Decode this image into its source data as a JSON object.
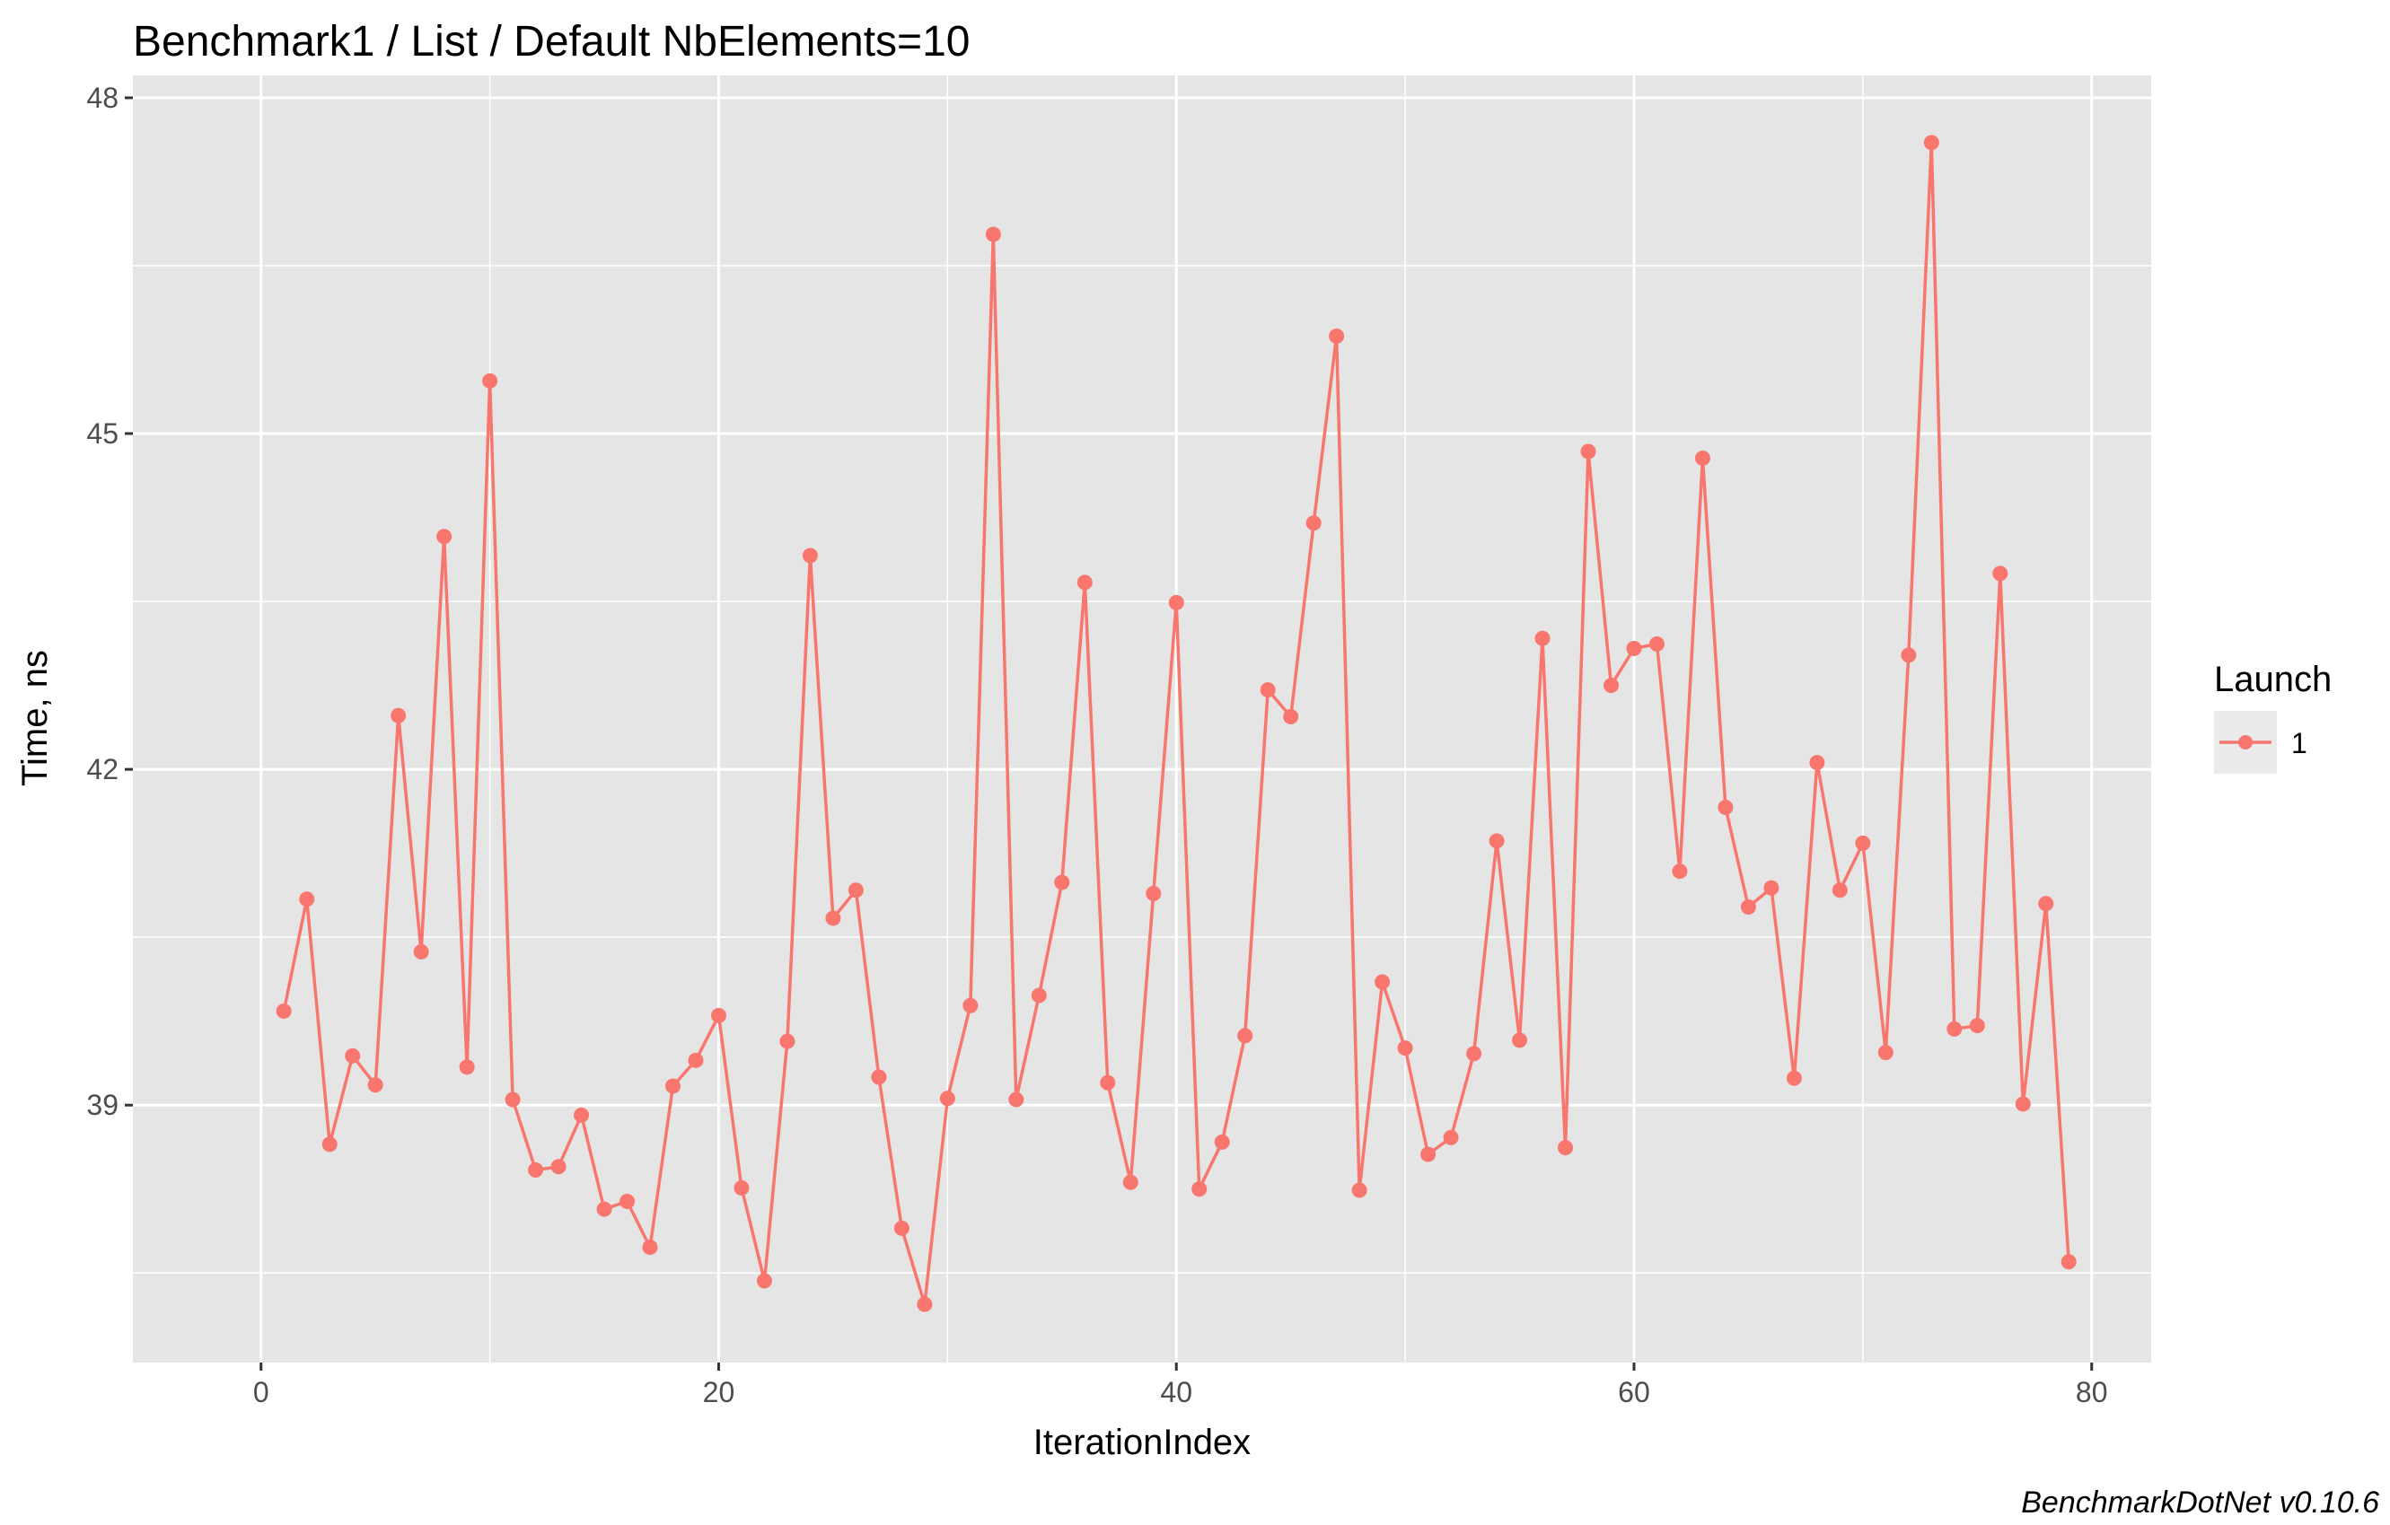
{
  "chart_data": {
    "type": "line",
    "title": "Benchmark1 / List / Default NbElements=10",
    "xlabel": "IterationIndex",
    "ylabel": "Time, ns",
    "xlim": [
      -5.6,
      82.6
    ],
    "ylim": [
      36.7,
      48.2
    ],
    "x_ticks": [
      0,
      20,
      40,
      60,
      80
    ],
    "x_tick_labels": [
      "0",
      "20",
      "40",
      "60",
      "80"
    ],
    "x_minor_ticks": [
      10,
      30,
      50,
      70
    ],
    "y_ticks": [
      39,
      42,
      45,
      48
    ],
    "y_tick_labels": [
      "39",
      "42",
      "45",
      "48"
    ],
    "y_minor_ticks": [
      37.5,
      40.5,
      43.5,
      46.5
    ],
    "grid": true,
    "legend": {
      "title": "Launch",
      "position": "right"
    },
    "caption": "BenchmarkDotNet v0.10.6",
    "colors": {
      "series": "#F8766D",
      "panel": "#E5E5E5",
      "grid": "#FFFFFF"
    },
    "series": [
      {
        "name": "1",
        "x": [
          1,
          2,
          3,
          4,
          5,
          6,
          7,
          8,
          9,
          10,
          11,
          12,
          13,
          14,
          15,
          16,
          17,
          18,
          19,
          20,
          21,
          22,
          23,
          24,
          25,
          26,
          27,
          28,
          29,
          30,
          31,
          32,
          33,
          34,
          35,
          36,
          37,
          38,
          39,
          40,
          41,
          42,
          43,
          44,
          45,
          46,
          47,
          48,
          49,
          50,
          51,
          52,
          53,
          54,
          55,
          56,
          57,
          58,
          59,
          60,
          61,
          62,
          63,
          64,
          65,
          66,
          67,
          68,
          69,
          70,
          71,
          72,
          73,
          74,
          75,
          76,
          77,
          78,
          79
        ],
        "values": [
          39.84,
          40.84,
          38.65,
          39.44,
          39.18,
          42.48,
          40.37,
          44.08,
          39.34,
          45.47,
          39.05,
          38.42,
          38.45,
          38.91,
          38.07,
          38.14,
          37.73,
          39.17,
          39.4,
          39.8,
          38.26,
          37.43,
          39.57,
          43.91,
          40.67,
          40.92,
          39.25,
          37.9,
          37.22,
          39.06,
          39.89,
          46.78,
          39.05,
          39.98,
          40.99,
          43.67,
          39.2,
          38.31,
          40.89,
          43.49,
          38.25,
          38.67,
          39.62,
          42.71,
          42.47,
          44.2,
          45.87,
          38.24,
          40.1,
          39.51,
          38.56,
          38.71,
          39.46,
          41.36,
          39.58,
          43.17,
          38.62,
          44.84,
          42.75,
          43.08,
          43.12,
          41.09,
          44.78,
          41.66,
          40.77,
          40.94,
          39.24,
          42.06,
          40.92,
          41.34,
          39.47,
          43.02,
          47.6,
          39.68,
          39.71,
          43.75,
          39.01,
          40.8,
          37.6
        ]
      }
    ]
  }
}
